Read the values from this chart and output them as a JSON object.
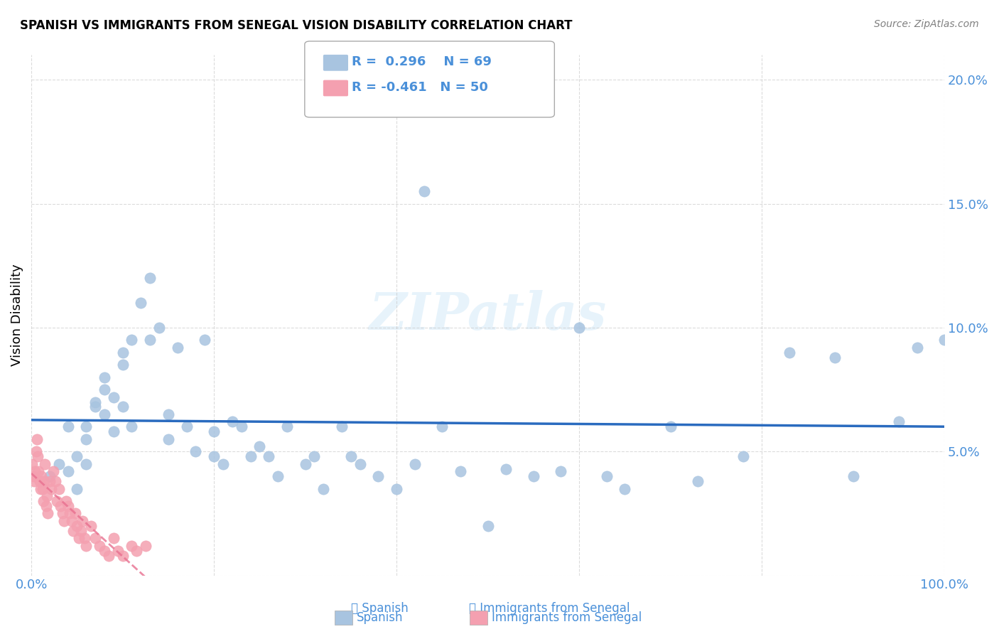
{
  "title": "SPANISH VS IMMIGRANTS FROM SENEGAL VISION DISABILITY CORRELATION CHART",
  "source": "Source: ZipAtlas.com",
  "xlabel": "",
  "ylabel": "Vision Disability",
  "xlim": [
    0,
    1.0
  ],
  "ylim": [
    0,
    0.21
  ],
  "xticks": [
    0.0,
    0.2,
    0.4,
    0.6,
    0.8,
    1.0
  ],
  "xticklabels": [
    "0.0%",
    "",
    "",
    "",
    "",
    "100.0%"
  ],
  "yticks": [
    0.0,
    0.05,
    0.1,
    0.15,
    0.2
  ],
  "yticklabels": [
    "",
    "5.0%",
    "10.0%",
    "15.0%",
    "20.0%"
  ],
  "legend_r1": "R =  0.296",
  "legend_n1": "N = 69",
  "legend_r2": "R = -0.461",
  "legend_n2": "N = 50",
  "color_spanish": "#a8c4e0",
  "color_senegal": "#f4a0b0",
  "color_line_spanish": "#2a6bbf",
  "color_line_senegal": "#e87090",
  "color_text": "#4a90d9",
  "watermark": "ZIPatlas",
  "spanish_x": [
    0.02,
    0.03,
    0.04,
    0.04,
    0.05,
    0.05,
    0.06,
    0.06,
    0.06,
    0.07,
    0.07,
    0.08,
    0.08,
    0.08,
    0.09,
    0.09,
    0.1,
    0.1,
    0.1,
    0.11,
    0.11,
    0.12,
    0.13,
    0.13,
    0.14,
    0.15,
    0.15,
    0.16,
    0.17,
    0.18,
    0.19,
    0.2,
    0.2,
    0.21,
    0.22,
    0.23,
    0.24,
    0.25,
    0.26,
    0.27,
    0.28,
    0.3,
    0.31,
    0.32,
    0.34,
    0.35,
    0.36,
    0.38,
    0.4,
    0.42,
    0.43,
    0.45,
    0.47,
    0.5,
    0.52,
    0.55,
    0.58,
    0.6,
    0.63,
    0.65,
    0.7,
    0.73,
    0.78,
    0.83,
    0.88,
    0.9,
    0.95,
    0.97,
    1.0
  ],
  "spanish_y": [
    0.04,
    0.045,
    0.042,
    0.06,
    0.035,
    0.048,
    0.06,
    0.055,
    0.045,
    0.07,
    0.068,
    0.065,
    0.08,
    0.075,
    0.058,
    0.072,
    0.09,
    0.085,
    0.068,
    0.095,
    0.06,
    0.11,
    0.095,
    0.12,
    0.1,
    0.055,
    0.065,
    0.092,
    0.06,
    0.05,
    0.095,
    0.058,
    0.048,
    0.045,
    0.062,
    0.06,
    0.048,
    0.052,
    0.048,
    0.04,
    0.06,
    0.045,
    0.048,
    0.035,
    0.06,
    0.048,
    0.045,
    0.04,
    0.035,
    0.045,
    0.155,
    0.06,
    0.042,
    0.02,
    0.043,
    0.04,
    0.042,
    0.1,
    0.04,
    0.035,
    0.06,
    0.038,
    0.048,
    0.09,
    0.088,
    0.04,
    0.062,
    0.092,
    0.095
  ],
  "senegal_x": [
    0.001,
    0.002,
    0.003,
    0.004,
    0.005,
    0.006,
    0.007,
    0.008,
    0.009,
    0.01,
    0.011,
    0.012,
    0.013,
    0.014,
    0.015,
    0.016,
    0.017,
    0.018,
    0.02,
    0.022,
    0.024,
    0.026,
    0.028,
    0.03,
    0.032,
    0.034,
    0.036,
    0.038,
    0.04,
    0.042,
    0.044,
    0.046,
    0.048,
    0.05,
    0.052,
    0.054,
    0.056,
    0.058,
    0.06,
    0.065,
    0.07,
    0.075,
    0.08,
    0.085,
    0.09,
    0.095,
    0.1,
    0.11,
    0.115,
    0.125
  ],
  "senegal_y": [
    0.045,
    0.04,
    0.038,
    0.042,
    0.05,
    0.055,
    0.048,
    0.042,
    0.038,
    0.035,
    0.04,
    0.035,
    0.03,
    0.038,
    0.045,
    0.028,
    0.032,
    0.025,
    0.038,
    0.035,
    0.042,
    0.038,
    0.03,
    0.035,
    0.028,
    0.025,
    0.022,
    0.03,
    0.028,
    0.025,
    0.022,
    0.018,
    0.025,
    0.02,
    0.015,
    0.018,
    0.022,
    0.015,
    0.012,
    0.02,
    0.015,
    0.012,
    0.01,
    0.008,
    0.015,
    0.01,
    0.008,
    0.012,
    0.01,
    0.012
  ]
}
